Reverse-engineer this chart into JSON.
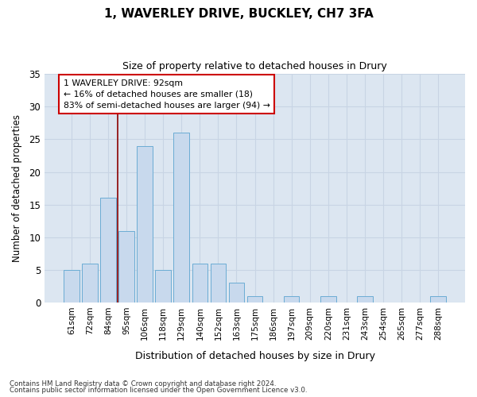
{
  "title1": "1, WAVERLEY DRIVE, BUCKLEY, CH7 3FA",
  "title2": "Size of property relative to detached houses in Drury",
  "xlabel": "Distribution of detached houses by size in Drury",
  "ylabel": "Number of detached properties",
  "categories": [
    "61sqm",
    "72sqm",
    "84sqm",
    "95sqm",
    "106sqm",
    "118sqm",
    "129sqm",
    "140sqm",
    "152sqm",
    "163sqm",
    "175sqm",
    "186sqm",
    "197sqm",
    "209sqm",
    "220sqm",
    "231sqm",
    "243sqm",
    "254sqm",
    "265sqm",
    "277sqm",
    "288sqm"
  ],
  "values": [
    5,
    6,
    16,
    11,
    24,
    5,
    26,
    6,
    6,
    3,
    1,
    0,
    1,
    0,
    1,
    0,
    1,
    0,
    0,
    0,
    1
  ],
  "bar_color": "#c8d9ed",
  "bar_edge_color": "#6bacd4",
  "grid_color": "#c8d4e4",
  "background_color": "#dce6f1",
  "red_line_x": 2.5,
  "marker_label": "1 WAVERLEY DRIVE: 92sqm",
  "annotation_line1": "← 16% of detached houses are smaller (18)",
  "annotation_line2": "83% of semi-detached houses are larger (94) →",
  "footer1": "Contains HM Land Registry data © Crown copyright and database right 2024.",
  "footer2": "Contains public sector information licensed under the Open Government Licence v3.0.",
  "ylim": [
    0,
    35
  ],
  "yticks": [
    0,
    5,
    10,
    15,
    20,
    25,
    30,
    35
  ]
}
